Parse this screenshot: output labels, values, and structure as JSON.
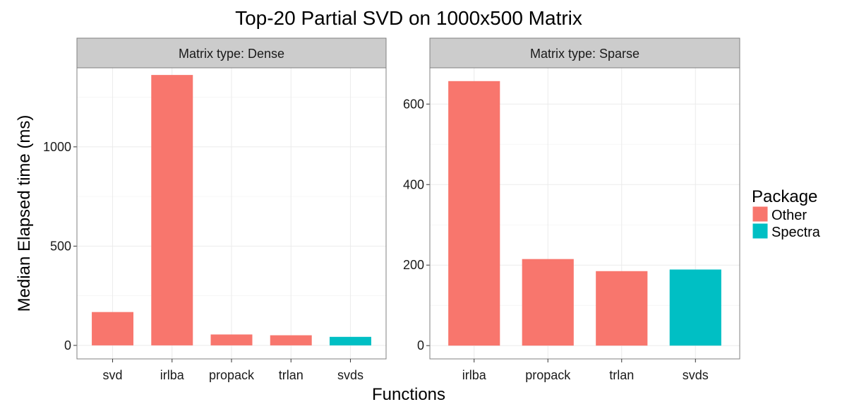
{
  "chart_data": {
    "type": "bar",
    "title": "Top-20 Partial SVD on 1000x500 Matrix",
    "xlabel": "Functions",
    "ylabel": "Median Elapsed time (ms)",
    "legend": {
      "title": "Package",
      "position": "right",
      "entries": [
        {
          "label": "Other",
          "color": "#F8766D"
        },
        {
          "label": "Spectra",
          "color": "#00BFC4"
        }
      ]
    },
    "grid": true,
    "panels": [
      {
        "strip_label": "Matrix type: Dense",
        "categories": [
          "svd",
          "irlba",
          "propack",
          "trlan",
          "svds"
        ],
        "values": [
          168,
          1362,
          55,
          51,
          43
        ],
        "package": [
          "Other",
          "Other",
          "Other",
          "Other",
          "Spectra"
        ],
        "ylim": [
          -68,
          1398
        ],
        "yticks": [
          0,
          500,
          1000
        ]
      },
      {
        "strip_label": "Matrix type: Sparse",
        "categories": [
          "irlba",
          "propack",
          "trlan",
          "svds"
        ],
        "values": [
          657,
          215,
          185,
          189
        ],
        "package": [
          "Other",
          "Other",
          "Other",
          "Spectra"
        ],
        "ylim": [
          -33,
          690
        ],
        "yticks": [
          0,
          200,
          400,
          600
        ]
      }
    ]
  }
}
